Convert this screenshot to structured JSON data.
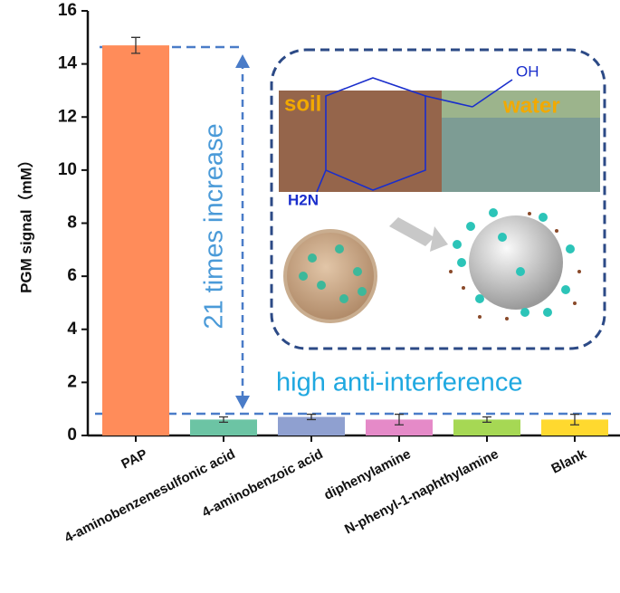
{
  "chart_data": {
    "type": "bar",
    "y_label": "PGM signal（mM）",
    "categories": [
      "PAP",
      "4-aminobenzenesulfonic acid",
      "4-aminobenzoic acid",
      "diphenylamine",
      "N-phenyl-1-naphthylamine",
      "Blank"
    ],
    "values": [
      14.7,
      0.6,
      0.7,
      0.6,
      0.6,
      0.6
    ],
    "errors": [
      0.3,
      0.1,
      0.1,
      0.2,
      0.1,
      0.2
    ],
    "colors": [
      "#ff8c5a",
      "#6cc4a4",
      "#8fa0d0",
      "#e58ac8",
      "#a6d854",
      "#ffd92f"
    ],
    "ylim": [
      0,
      16
    ],
    "yticks": [
      0,
      2,
      4,
      6,
      8,
      10,
      12,
      14,
      16
    ],
    "annotations": {
      "increase": "21 times increase",
      "interference": "high anti-interference",
      "soil": "soil",
      "water": "water",
      "oh": "OH",
      "nh2": "H2N"
    }
  }
}
